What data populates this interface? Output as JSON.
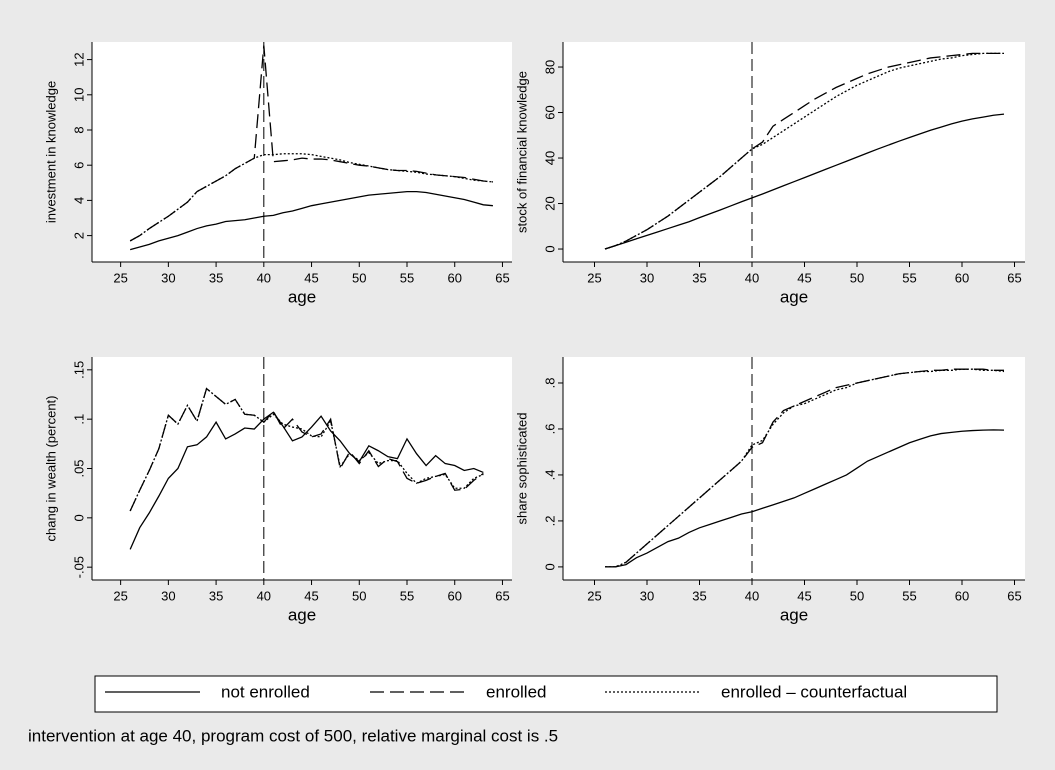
{
  "chart_data": [
    {
      "type": "line",
      "x_label": "age",
      "y_label": "investment in knowledge",
      "x": [
        26,
        27,
        28,
        29,
        30,
        31,
        32,
        33,
        34,
        35,
        36,
        37,
        38,
        39,
        40,
        41,
        42,
        43,
        44,
        45,
        46,
        47,
        48,
        49,
        50,
        51,
        52,
        53,
        54,
        55,
        56,
        57,
        58,
        59,
        60,
        61,
        62,
        63,
        64
      ],
      "xlim": [
        22,
        66
      ],
      "xticks": [
        25,
        30,
        35,
        40,
        45,
        50,
        55,
        60,
        65
      ],
      "ylim": [
        0.5,
        13
      ],
      "yticks": [
        2,
        4,
        6,
        8,
        10,
        12
      ],
      "xline": 40,
      "series": [
        {
          "name": "not enrolled",
          "color": "#000000",
          "style": "solid",
          "values": [
            1.2,
            1.35,
            1.5,
            1.7,
            1.85,
            2.0,
            2.2,
            2.4,
            2.55,
            2.65,
            2.8,
            2.85,
            2.9,
            3.0,
            3.1,
            3.15,
            3.3,
            3.4,
            3.55,
            3.7,
            3.8,
            3.9,
            4.0,
            4.1,
            4.2,
            4.3,
            4.35,
            4.4,
            4.45,
            4.5,
            4.5,
            4.45,
            4.35,
            4.25,
            4.15,
            4.05,
            3.9,
            3.75,
            3.7
          ]
        },
        {
          "name": "enrolled",
          "color": "#000000",
          "style": "dashed",
          "values": [
            1.7,
            2.0,
            2.4,
            2.75,
            3.1,
            3.5,
            3.9,
            4.5,
            4.8,
            5.1,
            5.4,
            5.8,
            6.1,
            6.4,
            12.8,
            6.2,
            6.25,
            6.3,
            6.4,
            6.35,
            6.35,
            6.3,
            6.2,
            6.1,
            6.0,
            5.95,
            5.85,
            5.75,
            5.7,
            5.7,
            5.65,
            5.55,
            5.45,
            5.4,
            5.35,
            5.3,
            5.2,
            5.1,
            5.05
          ]
        },
        {
          "name": "enrolled – counterfactual",
          "color": "#000000",
          "style": "dotted",
          "values": [
            1.7,
            2.0,
            2.4,
            2.75,
            3.1,
            3.5,
            3.9,
            4.5,
            4.8,
            5.1,
            5.4,
            5.8,
            6.1,
            6.4,
            6.6,
            6.6,
            6.65,
            6.65,
            6.65,
            6.6,
            6.5,
            6.4,
            6.3,
            6.15,
            6.05,
            5.95,
            5.85,
            5.75,
            5.7,
            5.65,
            5.6,
            5.5,
            5.45,
            5.4,
            5.35,
            5.25,
            5.15,
            5.1,
            5.05
          ]
        }
      ]
    },
    {
      "type": "line",
      "x_label": "age",
      "y_label": "stock of financial knowledge",
      "x": [
        26,
        27,
        28,
        29,
        30,
        31,
        32,
        33,
        34,
        35,
        36,
        37,
        38,
        39,
        40,
        41,
        42,
        43,
        44,
        45,
        46,
        47,
        48,
        49,
        50,
        51,
        52,
        53,
        54,
        55,
        56,
        57,
        58,
        59,
        60,
        61,
        62,
        63,
        64
      ],
      "xlim": [
        22,
        66
      ],
      "xticks": [
        25,
        30,
        35,
        40,
        45,
        50,
        55,
        60,
        65
      ],
      "ylim": [
        -5.7,
        91
      ],
      "yticks": [
        0,
        20,
        40,
        60,
        80
      ],
      "xline": 40,
      "series": [
        {
          "name": "not enrolled",
          "color": "#000000",
          "style": "solid",
          "values": [
            0,
            1.5,
            3,
            4.5,
            6,
            7.5,
            9,
            10.5,
            12,
            13.8,
            15.5,
            17.2,
            19,
            20.8,
            22.5,
            24.2,
            26,
            27.8,
            29.6,
            31.4,
            33.2,
            35,
            36.8,
            38.6,
            40.4,
            42.2,
            44,
            45.7,
            47.4,
            49,
            50.6,
            52.2,
            53.6,
            55,
            56.2,
            57.2,
            58,
            58.8,
            59.3
          ]
        },
        {
          "name": "enrolled",
          "color": "#000000",
          "style": "dashed",
          "values": [
            0,
            1.5,
            3.5,
            6,
            8.5,
            11.5,
            14.5,
            18,
            21.5,
            25,
            28.5,
            32,
            36,
            40,
            44,
            47,
            54,
            57,
            60,
            63,
            66,
            68.5,
            71,
            73,
            75,
            77,
            78.5,
            80,
            81,
            82,
            83,
            84,
            84.5,
            85,
            85.5,
            86,
            86,
            86,
            86
          ]
        },
        {
          "name": "enrolled – counterfactual",
          "color": "#000000",
          "style": "dotted",
          "values": [
            0,
            1.5,
            3.5,
            6,
            8.5,
            11.5,
            14.5,
            18,
            21.5,
            25,
            28.5,
            32,
            36,
            40,
            44,
            46,
            49,
            52,
            55,
            58,
            61,
            64,
            67,
            69.5,
            72,
            74,
            76,
            78,
            79.5,
            80.5,
            81.5,
            82.5,
            83.5,
            84,
            85,
            85.5,
            86,
            86,
            86
          ]
        }
      ]
    },
    {
      "type": "line",
      "x_label": "age",
      "y_label": "chang in wealth (percent)",
      "x": [
        26,
        27,
        28,
        29,
        30,
        31,
        32,
        33,
        34,
        35,
        36,
        37,
        38,
        39,
        40,
        41,
        42,
        43,
        44,
        45,
        46,
        47,
        48,
        49,
        50,
        51,
        52,
        53,
        54,
        55,
        56,
        57,
        58,
        59,
        60,
        61,
        62,
        63
      ],
      "xlim": [
        22,
        66
      ],
      "xticks": [
        25,
        30,
        35,
        40,
        45,
        50,
        55,
        60,
        65
      ],
      "ylim": [
        -0.063,
        0.163
      ],
      "yticks": [
        {
          "value": -0.05,
          "label": "-.05"
        },
        0,
        {
          "value": 0.05,
          "label": ".05"
        },
        {
          "value": 0.1,
          "label": ".1"
        },
        {
          "value": 0.15,
          "label": ".15"
        }
      ],
      "xline": 40,
      "series": [
        {
          "name": "not enrolled",
          "color": "#000000",
          "style": "solid",
          "values": [
            -0.032,
            -0.01,
            0.005,
            0.022,
            0.04,
            0.05,
            0.072,
            0.074,
            0.082,
            0.097,
            0.08,
            0.085,
            0.091,
            0.09,
            0.1,
            0.107,
            0.093,
            0.078,
            0.082,
            0.092,
            0.103,
            0.088,
            0.078,
            0.065,
            0.057,
            0.073,
            0.068,
            0.062,
            0.06,
            0.08,
            0.065,
            0.053,
            0.063,
            0.055,
            0.053,
            0.048,
            0.05,
            0.046
          ]
        },
        {
          "name": "enrolled",
          "color": "#000000",
          "style": "dashed",
          "values": [
            0.007,
            0.028,
            0.048,
            0.07,
            0.104,
            0.095,
            0.114,
            0.098,
            0.131,
            0.123,
            0.115,
            0.12,
            0.105,
            0.104,
            0.097,
            0.108,
            0.09,
            0.1,
            0.087,
            0.082,
            0.085,
            0.1,
            0.05,
            0.067,
            0.055,
            0.068,
            0.052,
            0.06,
            0.057,
            0.04,
            0.035,
            0.038,
            0.042,
            0.045,
            0.028,
            0.029,
            0.038,
            0.045
          ]
        },
        {
          "name": "enrolled – counterfactual",
          "color": "#000000",
          "style": "dotted",
          "values": [
            0.007,
            0.028,
            0.048,
            0.07,
            0.104,
            0.095,
            0.114,
            0.098,
            0.131,
            0.123,
            0.115,
            0.12,
            0.105,
            0.104,
            0.097,
            0.105,
            0.095,
            0.092,
            0.09,
            0.083,
            0.082,
            0.098,
            0.052,
            0.065,
            0.058,
            0.066,
            0.055,
            0.058,
            0.058,
            0.045,
            0.035,
            0.04,
            0.042,
            0.044,
            0.03,
            0.03,
            0.04,
            0.044
          ]
        }
      ]
    },
    {
      "type": "line",
      "x_label": "age",
      "y_label": "share sophisticated",
      "x": [
        26,
        27,
        28,
        29,
        30,
        31,
        32,
        33,
        34,
        35,
        36,
        37,
        38,
        39,
        40,
        41,
        42,
        43,
        44,
        45,
        46,
        47,
        48,
        49,
        50,
        51,
        52,
        53,
        54,
        55,
        56,
        57,
        58,
        59,
        60,
        61,
        62,
        63,
        64
      ],
      "xlim": [
        22,
        66
      ],
      "xticks": [
        25,
        30,
        35,
        40,
        45,
        50,
        55,
        60,
        65
      ],
      "ylim": [
        -0.057,
        0.913
      ],
      "yticks": [
        0,
        {
          "value": 0.2,
          "label": ".2"
        },
        {
          "value": 0.4,
          "label": ".4"
        },
        {
          "value": 0.6,
          "label": ".6"
        },
        {
          "value": 0.8,
          "label": ".8"
        }
      ],
      "xline": 40,
      "series": [
        {
          "name": "not enrolled",
          "color": "#000000",
          "style": "solid",
          "values": [
            0,
            0,
            0.01,
            0.04,
            0.06,
            0.085,
            0.11,
            0.125,
            0.15,
            0.17,
            0.185,
            0.2,
            0.215,
            0.23,
            0.24,
            0.255,
            0.27,
            0.285,
            0.3,
            0.32,
            0.34,
            0.36,
            0.38,
            0.4,
            0.43,
            0.46,
            0.48,
            0.5,
            0.52,
            0.54,
            0.555,
            0.57,
            0.58,
            0.585,
            0.59,
            0.593,
            0.595,
            0.596,
            0.595
          ]
        },
        {
          "name": "enrolled",
          "color": "#000000",
          "style": "dashed",
          "values": [
            0,
            0,
            0.02,
            0.06,
            0.1,
            0.14,
            0.18,
            0.22,
            0.26,
            0.3,
            0.34,
            0.38,
            0.42,
            0.46,
            0.52,
            0.54,
            0.63,
            0.68,
            0.7,
            0.72,
            0.74,
            0.76,
            0.78,
            0.79,
            0.8,
            0.81,
            0.82,
            0.83,
            0.84,
            0.845,
            0.85,
            0.855,
            0.855,
            0.86,
            0.86,
            0.86,
            0.86,
            0.855,
            0.855
          ]
        },
        {
          "name": "enrolled – counterfactual",
          "color": "#000000",
          "style": "dotted",
          "values": [
            0,
            0,
            0.02,
            0.06,
            0.1,
            0.14,
            0.18,
            0.22,
            0.26,
            0.3,
            0.34,
            0.38,
            0.42,
            0.46,
            0.53,
            0.55,
            0.62,
            0.67,
            0.7,
            0.71,
            0.73,
            0.75,
            0.77,
            0.78,
            0.8,
            0.81,
            0.82,
            0.83,
            0.84,
            0.845,
            0.85,
            0.85,
            0.855,
            0.855,
            0.86,
            0.86,
            0.855,
            0.855,
            0.85
          ]
        }
      ]
    }
  ],
  "note": "intervention at age 40, program cost of 500, relative marginal cost is .5"
}
